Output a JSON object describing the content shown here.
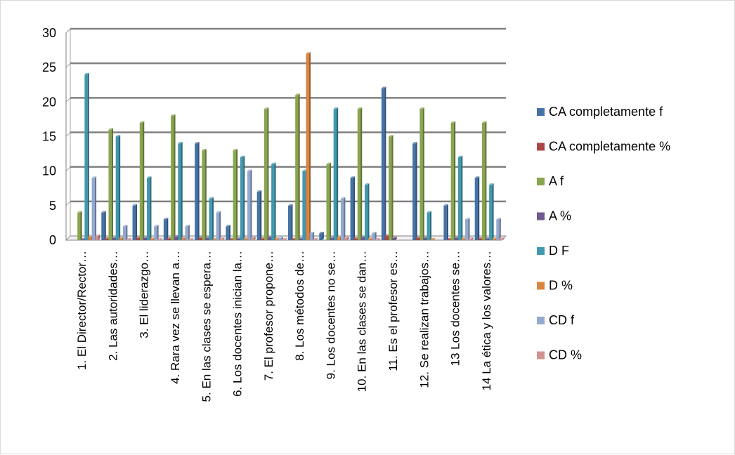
{
  "chart_data": {
    "type": "bar",
    "title": "",
    "xlabel": "",
    "ylabel": "",
    "ylim": [
      0,
      30
    ],
    "yticks": [
      "0",
      "5",
      "10",
      "15",
      "20",
      "25",
      "30"
    ],
    "grid": true,
    "legend_position": "right",
    "categories": [
      "1.      El Director/Rector…",
      "2. Las autoridades…",
      "3. El liderazgo…",
      "4. Rara vez se llevan a…",
      "5. En  las clases se espera…",
      "6. Los docentes inician la…",
      "7. El profesor propone…",
      "8. Los métodos de…",
      "9. Los docentes no  se…",
      "10. En las clases se dan…",
      "11. Es el profesor es…",
      "12. Se realizan trabajos…",
      "13 Los docentes se…",
      "14 La ética y los valores…"
    ],
    "series": [
      {
        "name": "CA completamente f",
        "color": "#4572a7",
        "values": [
          0,
          4,
          5,
          3,
          14,
          2,
          7,
          5,
          1,
          9,
          22,
          14,
          5,
          9
        ]
      },
      {
        "name": "CA completamente %",
        "color": "#aa4643",
        "values": [
          0,
          0.2,
          0.3,
          0.2,
          0.3,
          0.1,
          0.2,
          0.1,
          0,
          0.2,
          0.6,
          0.3,
          0.1,
          0.2
        ]
      },
      {
        "name": "A f",
        "color": "#89a54e",
        "values": [
          4,
          16,
          17,
          18,
          13,
          13,
          19,
          21,
          11,
          19,
          15,
          19,
          17,
          17
        ]
      },
      {
        "name": "A %",
        "color": "#71588f",
        "values": [
          0.1,
          0.3,
          0.3,
          0.5,
          0.3,
          0.2,
          0.4,
          0.2,
          0.3,
          0.4,
          0.3,
          0.3,
          0.3,
          0.2
        ]
      },
      {
        "name": "D F",
        "color": "#4198af",
        "values": [
          24,
          15,
          9,
          14,
          6,
          12,
          11,
          10,
          19,
          8,
          0,
          4,
          12,
          8
        ]
      },
      {
        "name": "D %",
        "color": "#db843d",
        "values": [
          0.5,
          0.3,
          0.2,
          0.3,
          0.1,
          0.2,
          0.2,
          27,
          0.4,
          0.2,
          0,
          0.1,
          0.2,
          0.2
        ]
      },
      {
        "name": "CD f",
        "color": "#93a9cf",
        "values": [
          9,
          2,
          2,
          2,
          4,
          10,
          0.3,
          1,
          6,
          1,
          0,
          0,
          3,
          3
        ]
      },
      {
        "name": "CD %",
        "color": "#d19392",
        "values": [
          0.6,
          0.1,
          0.1,
          0.1,
          0.2,
          0.3,
          0.1,
          0.1,
          0.3,
          0.1,
          0,
          0,
          0.2,
          0.2
        ]
      }
    ]
  }
}
